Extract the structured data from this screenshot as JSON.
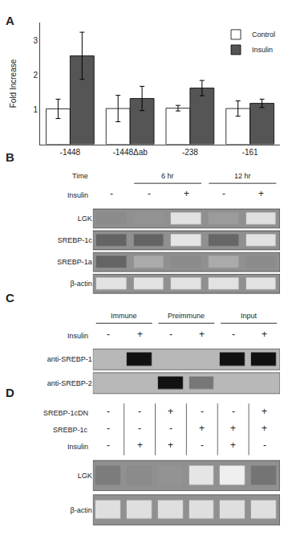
{
  "chart_data": [
    {
      "type": "bar",
      "panel": "A",
      "categories": [
        "-1448",
        "-1448Δab",
        "-238",
        "-161"
      ],
      "series": [
        {
          "name": "Control",
          "color": "white",
          "values": [
            1.02,
            1.03,
            1.04,
            1.03
          ],
          "errors": [
            0.28,
            0.38,
            0.08,
            0.22
          ]
        },
        {
          "name": "Insulin",
          "color": "#555555",
          "values": [
            2.55,
            1.32,
            1.62,
            1.18
          ],
          "errors": [
            0.68,
            0.35,
            0.22,
            0.12
          ]
        }
      ],
      "ylabel": "Fold Increase",
      "ylim": [
        0,
        3.5
      ],
      "yticks": [
        1,
        2,
        3
      ],
      "legend": "upper right",
      "grid": false
    },
    {
      "type": "gel",
      "panel": "B",
      "rows": [
        "LGK",
        "SREBP-1c",
        "SREBP-1a",
        "β-actin"
      ],
      "cells": [
        [
          0.35,
          0.4,
          0.9,
          0.45,
          0.88
        ],
        [
          0.1,
          0.1,
          0.92,
          0.12,
          0.9
        ],
        [
          0.1,
          0.55,
          0.35,
          0.55,
          0.35
        ],
        [
          0.9,
          0.9,
          0.9,
          0.9,
          0.9
        ]
      ],
      "group_title": "Time",
      "groups": [
        null,
        "6 hr",
        "6 hr",
        "12 hr",
        "12 hr"
      ],
      "header_rows": [
        {
          "label": "Insulin",
          "values": [
            "-",
            "-",
            "+",
            "-",
            "+"
          ]
        }
      ]
    },
    {
      "type": "blot",
      "panel": "C",
      "rows": [
        "anti-SREBP-1",
        "anti-SREBP-2"
      ],
      "cells": [
        [
          0.15,
          0.88,
          0.08,
          0.08,
          0.75,
          0.88
        ],
        [
          0.08,
          0.08,
          0.85,
          0.5,
          0.08,
          0.08
        ]
      ],
      "groups": [
        "Immune",
        "Immune",
        "Preimmune",
        "Preimmune",
        "Input",
        "Input"
      ],
      "header_rows": [
        {
          "label": "Insulin",
          "values": [
            "-",
            "+",
            "-",
            "+",
            "-",
            "+"
          ]
        }
      ]
    },
    {
      "type": "gel",
      "panel": "D",
      "rows": [
        "LGK",
        "β-actin"
      ],
      "cells": [
        [
          0.25,
          0.35,
          0.4,
          0.92,
          0.98,
          0.2
        ],
        [
          0.88,
          0.88,
          0.88,
          0.88,
          0.88,
          0.88
        ]
      ],
      "header_rows": [
        {
          "label": "SREBP-1cDN",
          "values": [
            "-",
            "-",
            "+",
            "-",
            "-",
            "+"
          ]
        },
        {
          "label": "SREBP-1c",
          "values": [
            "-",
            "-",
            "-",
            "+",
            "+",
            "+"
          ]
        },
        {
          "label": "Insulin",
          "values": [
            "-",
            "+",
            "+",
            "-",
            "+",
            "-"
          ]
        }
      ]
    }
  ]
}
